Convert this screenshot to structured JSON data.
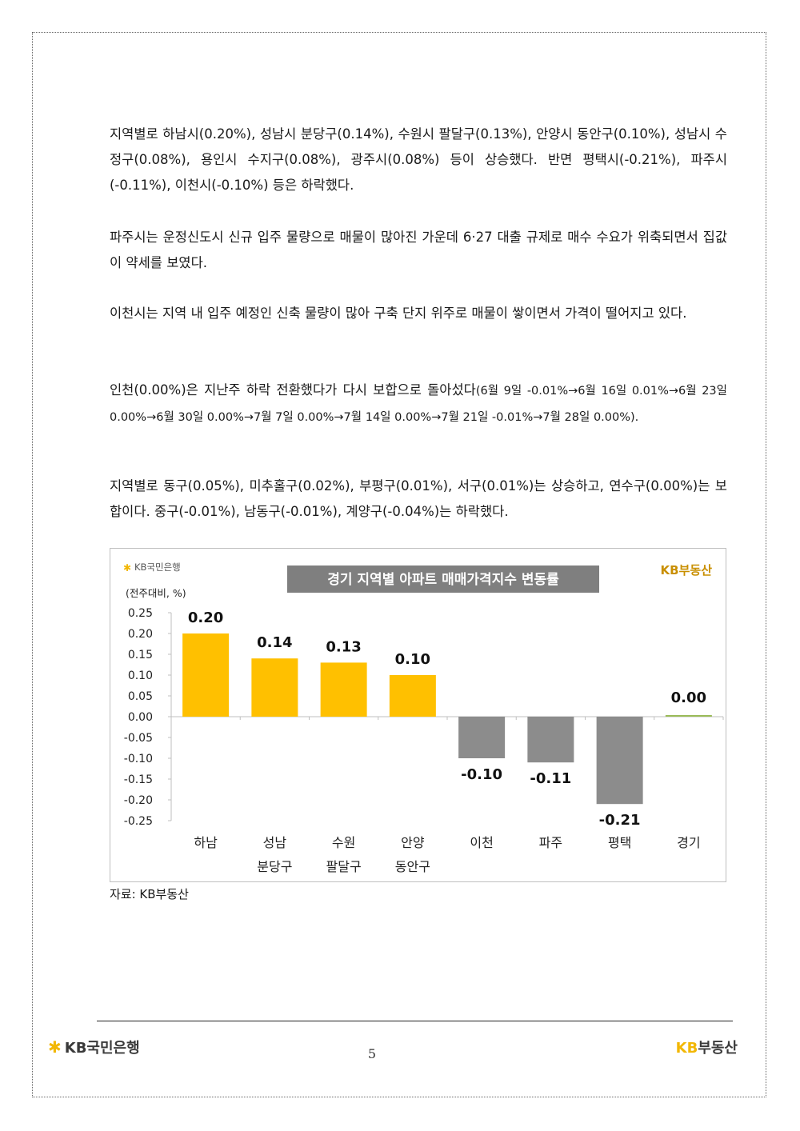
{
  "paragraphs": {
    "p1": "지역별로 하남시(0.20%), 성남시 분당구(0.14%), 수원시 팔달구(0.13%), 안양시 동안구(0.10%), 성남시 수정구(0.08%), 용인시 수지구(0.08%), 광주시(0.08%) 등이 상승했다. 반면 평택시(-0.21%), 파주시(-0.11%), 이천시(-0.10%) 등은 하락했다.",
    "p2": "파주시는 운정신도시 신규 입주 물량으로 매물이 많아진 가운데 6·27 대출 규제로 매수 수요가 위축되면서 집값이 약세를 보였다.",
    "p3": "이천시는 지역 내 입주 예정인 신축 물량이 많아 구축 단지 위주로 매물이 쌓이면서 가격이 떨어지고 있다.",
    "p4_main": "인천(0.00%)은 지난주 하락 전환했다가 다시 보합으로 돌아섰다",
    "p4_detail": "(6월 9일 -0.01%→6월 16일 0.01%→6월 23일 0.00%→6월 30일 0.00%→7월 7일 0.00%→7월 14일 0.00%→7월 21일 -0.01%→7월 28일 0.00%).",
    "p5": "지역별로 동구(0.05%), 미추홀구(0.02%), 부평구(0.01%), 서구(0.01%)는 상승하고, 연수구(0.00%)는 보합이다. 중구(-0.01%), 남동구(-0.01%), 계양구(-0.04%)는 하락했다."
  },
  "chart_header": {
    "bank_logo": "KB국민은행",
    "brand_logo": "KB부동산",
    "unit": "(전주대비, %)"
  },
  "chart_data": {
    "type": "bar",
    "title": "경기 지역별 아파트 매매가격지수 변동률",
    "categories": [
      [
        "하남"
      ],
      [
        "성남",
        "분당구"
      ],
      [
        "수원",
        "팔달구"
      ],
      [
        "안양",
        "동안구"
      ],
      [
        "이천"
      ],
      [
        "파주"
      ],
      [
        "평택"
      ],
      [
        "경기"
      ]
    ],
    "values": [
      0.2,
      0.14,
      0.13,
      0.1,
      -0.1,
      -0.11,
      -0.21,
      0.0
    ],
    "data_labels": [
      "0.20",
      "0.14",
      "0.13",
      "0.10",
      "-0.10",
      "-0.11",
      "-0.21",
      "0.00"
    ],
    "ylim": [
      -0.25,
      0.25
    ],
    "yticks": [
      "0.25",
      "0.20",
      "0.15",
      "0.10",
      "0.05",
      "0.00",
      "-0.05",
      "-0.10",
      "-0.15",
      "-0.20",
      "-0.25"
    ],
    "colors": {
      "positive": "#ffc000",
      "negative": "#8c8c8c",
      "total": "#9bbb59"
    },
    "title_bg": "#7f7f7f",
    "grid": false,
    "legend": "none"
  },
  "source": "자료: KB부동산",
  "footer": {
    "left_logo": "KB국민은행",
    "page_number": "5",
    "right_logo_kb": "KB",
    "right_logo_rest": "부동산"
  },
  "brand_colors": {
    "kb_yellow": "#f2b705",
    "gray": "#3a3a3a"
  }
}
